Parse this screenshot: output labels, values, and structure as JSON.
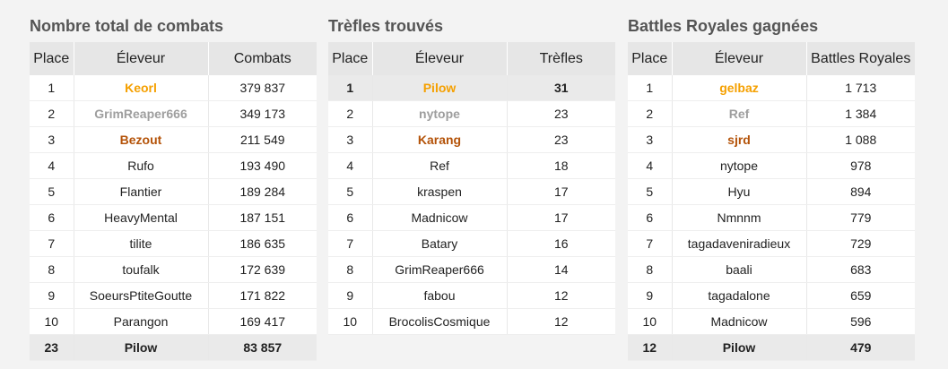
{
  "combats": {
    "title": "Nombre total de combats",
    "headers": [
      "Place",
      "Éleveur",
      "Combats"
    ],
    "rows": [
      {
        "place": "1",
        "name": "Keorl",
        "value": "379 837",
        "medal": "gold"
      },
      {
        "place": "2",
        "name": "GrimReaper666",
        "value": "349 173",
        "medal": "silver"
      },
      {
        "place": "3",
        "name": "Bezout",
        "value": "211 549",
        "medal": "bronze"
      },
      {
        "place": "4",
        "name": "Rufo",
        "value": "193 490"
      },
      {
        "place": "5",
        "name": "Flantier",
        "value": "189 284"
      },
      {
        "place": "6",
        "name": "HeavyMental",
        "value": "187 151"
      },
      {
        "place": "7",
        "name": "tilite",
        "value": "186 635"
      },
      {
        "place": "8",
        "name": "toufalk",
        "value": "172 639"
      },
      {
        "place": "9",
        "name": "SoeursPtiteGoutte",
        "value": "171 822"
      },
      {
        "place": "10",
        "name": "Parangon",
        "value": "169 417"
      },
      {
        "place": "23",
        "name": "Pilow",
        "value": "83 857",
        "self": true
      }
    ]
  },
  "trefles": {
    "title": "Trèfles trouvés",
    "headers": [
      "Place",
      "Éleveur",
      "Trèfles"
    ],
    "rows": [
      {
        "place": "1",
        "name": "Pilow",
        "value": "31",
        "medal": "gold",
        "self": true
      },
      {
        "place": "2",
        "name": "nytope",
        "value": "23",
        "medal": "silver"
      },
      {
        "place": "3",
        "name": "Karang",
        "value": "23",
        "medal": "bronze"
      },
      {
        "place": "4",
        "name": "Ref",
        "value": "18"
      },
      {
        "place": "5",
        "name": "kraspen",
        "value": "17"
      },
      {
        "place": "6",
        "name": "Madnicow",
        "value": "17"
      },
      {
        "place": "7",
        "name": "Batary",
        "value": "16"
      },
      {
        "place": "8",
        "name": "GrimReaper666",
        "value": "14"
      },
      {
        "place": "9",
        "name": "fabou",
        "value": "12"
      },
      {
        "place": "10",
        "name": "BrocolisCosmique",
        "value": "12"
      }
    ]
  },
  "battles": {
    "title": "Battles Royales gagnées",
    "headers": [
      "Place",
      "Éleveur",
      "Battles Royales"
    ],
    "rows": [
      {
        "place": "1",
        "name": "gelbaz",
        "value": "1 713",
        "medal": "gold"
      },
      {
        "place": "2",
        "name": "Ref",
        "value": "1 384",
        "medal": "silver"
      },
      {
        "place": "3",
        "name": "sjrd",
        "value": "1 088",
        "medal": "bronze"
      },
      {
        "place": "4",
        "name": "nytope",
        "value": "978"
      },
      {
        "place": "5",
        "name": "Hyu",
        "value": "894"
      },
      {
        "place": "6",
        "name": "Nmnnm",
        "value": "779"
      },
      {
        "place": "7",
        "name": "tagadaveniradieux",
        "value": "729"
      },
      {
        "place": "8",
        "name": "baali",
        "value": "683"
      },
      {
        "place": "9",
        "name": "tagadalone",
        "value": "659"
      },
      {
        "place": "10",
        "name": "Madnicow",
        "value": "596"
      },
      {
        "place": "12",
        "name": "Pilow",
        "value": "479",
        "self": true
      }
    ]
  },
  "colors": {
    "gold": "#f5a000",
    "silver": "#9e9e9e",
    "bronze": "#b45309",
    "header_bg": "#e6e6e6",
    "self_row_bg": "#eaeaea"
  }
}
